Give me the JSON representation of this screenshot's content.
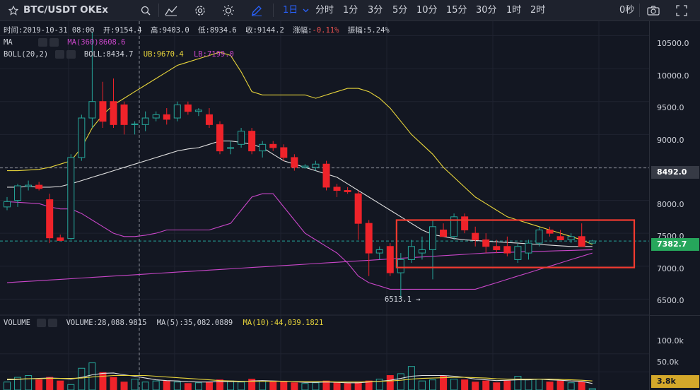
{
  "toolbar": {
    "symbol": "BTC/USDT OKEx",
    "interval": "1日",
    "intervals": [
      "分时",
      "1分",
      "3分",
      "5分",
      "10分",
      "15分",
      "30分",
      "1时",
      "2时"
    ],
    "countdown": "0秒",
    "icons": [
      "star-icon",
      "search-icon",
      "indicator-icon",
      "settings-icon",
      "theme-icon",
      "draw-icon",
      "camera-icon",
      "fullscreen-icon"
    ]
  },
  "legend": {
    "ohlc": {
      "time_label": "时间:",
      "time": "2019-10-31 08:00",
      "open_label": "开:",
      "open": "9154.4",
      "high_label": "高:",
      "high": "9403.0",
      "low_label": "低:",
      "low": "8934.6",
      "close_label": "收:",
      "close": "9144.2",
      "change_label": "涨幅:",
      "change": "-0.11%",
      "amplitude_label": "振幅:",
      "amplitude": "5.24%"
    },
    "ma": {
      "name": "MA",
      "param": "MA(360)",
      "value": "8608.6"
    },
    "boll": {
      "name": "BOLL(20,2)",
      "boll_label": "BOLL:",
      "boll": "8434.7",
      "ub_label": "UB:",
      "ub": "9670.4",
      "lb_label": "LB:",
      "lb": "7199.0"
    },
    "volume": {
      "name": "VOLUME",
      "vol_label": "VOLUME:",
      "vol": "28,088.9815",
      "ma5_label": "MA(5):",
      "ma5": "35,082.0889",
      "ma10_label": "MA(10):",
      "ma10": "44,039.1821"
    }
  },
  "price_axis": {
    "ticks": [
      "10500.0",
      "10000.0",
      "9500.0",
      "9000.0",
      "8500.0",
      "8000.0",
      "7500.0",
      "7000.0",
      "6500.0"
    ],
    "crosshair_price": "8492.0",
    "last_price": "7382.7"
  },
  "volume_axis": {
    "ticks": [
      "100.0k",
      "50.0k"
    ],
    "current": "3.8k"
  },
  "annotations": {
    "low_marker": "6513.1"
  },
  "colors": {
    "up": "#26a69a",
    "down": "#ef232a",
    "boll_mid": "#e0e0e0",
    "boll_upper": "#e8d53b",
    "boll_lower": "#c846c8",
    "ma360": "#c846c8",
    "ma5": "#e0e0e0",
    "ma10": "#e8d53b",
    "highlight_box": "#f23a2f",
    "last_price_bg": "#26a65b",
    "volume_current_bg": "#d4a82a"
  },
  "chart_data": {
    "type": "candlestick",
    "candles": [
      {
        "o": 7900,
        "h": 8050,
        "l": 7850,
        "c": 7980
      },
      {
        "o": 8000,
        "h": 8250,
        "l": 7900,
        "c": 8220
      },
      {
        "o": 8210,
        "h": 8300,
        "l": 8150,
        "c": 8230
      },
      {
        "o": 8230,
        "h": 8280,
        "l": 8150,
        "c": 8180
      },
      {
        "o": 8010,
        "h": 8100,
        "l": 7350,
        "c": 7430
      },
      {
        "o": 7430,
        "h": 7480,
        "l": 7380,
        "c": 7390
      },
      {
        "o": 7420,
        "h": 8700,
        "l": 7400,
        "c": 8650
      },
      {
        "o": 8650,
        "h": 9300,
        "l": 8600,
        "c": 9250
      },
      {
        "o": 9250,
        "h": 10550,
        "l": 9100,
        "c": 9500
      },
      {
        "o": 9500,
        "h": 9800,
        "l": 9100,
        "c": 9200
      },
      {
        "o": 9500,
        "h": 9850,
        "l": 9100,
        "c": 9150
      },
      {
        "o": 9450,
        "h": 9500,
        "l": 9000,
        "c": 9150
      },
      {
        "o": 9150,
        "h": 9200,
        "l": 9000,
        "c": 9160
      },
      {
        "o": 9150,
        "h": 9350,
        "l": 9050,
        "c": 9250
      },
      {
        "o": 9250,
        "h": 9350,
        "l": 9200,
        "c": 9300
      },
      {
        "o": 9300,
        "h": 9400,
        "l": 9150,
        "c": 9230
      },
      {
        "o": 9250,
        "h": 9500,
        "l": 9200,
        "c": 9450
      },
      {
        "o": 9450,
        "h": 9500,
        "l": 9300,
        "c": 9350
      },
      {
        "o": 9350,
        "h": 9400,
        "l": 9280,
        "c": 9370
      },
      {
        "o": 9300,
        "h": 9400,
        "l": 9100,
        "c": 9150
      },
      {
        "o": 9150,
        "h": 9200,
        "l": 8700,
        "c": 8750
      },
      {
        "o": 8800,
        "h": 8900,
        "l": 8700,
        "c": 8800
      },
      {
        "o": 8850,
        "h": 9100,
        "l": 8800,
        "c": 9050
      },
      {
        "o": 9050,
        "h": 9100,
        "l": 8700,
        "c": 8750
      },
      {
        "o": 8750,
        "h": 8900,
        "l": 8650,
        "c": 8850
      },
      {
        "o": 8850,
        "h": 8900,
        "l": 8750,
        "c": 8800
      },
      {
        "o": 8800,
        "h": 8850,
        "l": 8600,
        "c": 8650
      },
      {
        "o": 8650,
        "h": 8700,
        "l": 8450,
        "c": 8500
      },
      {
        "o": 8500,
        "h": 8550,
        "l": 8480,
        "c": 8520
      },
      {
        "o": 8500,
        "h": 8600,
        "l": 8450,
        "c": 8550
      },
      {
        "o": 8550,
        "h": 8600,
        "l": 8150,
        "c": 8200
      },
      {
        "o": 8200,
        "h": 8250,
        "l": 8050,
        "c": 8150
      },
      {
        "o": 8150,
        "h": 8200,
        "l": 8100,
        "c": 8130
      },
      {
        "o": 8100,
        "h": 8150,
        "l": 7400,
        "c": 7650
      },
      {
        "o": 7650,
        "h": 7700,
        "l": 6850,
        "c": 7200
      },
      {
        "o": 7200,
        "h": 7300,
        "l": 7100,
        "c": 7250
      },
      {
        "o": 7300,
        "h": 7350,
        "l": 6850,
        "c": 6900
      },
      {
        "o": 6900,
        "h": 7200,
        "l": 6513.1,
        "c": 7100
      },
      {
        "o": 7100,
        "h": 7400,
        "l": 7050,
        "c": 7300
      },
      {
        "o": 7200,
        "h": 7450,
        "l": 7100,
        "c": 7250
      },
      {
        "o": 7250,
        "h": 7700,
        "l": 6800,
        "c": 7600
      },
      {
        "o": 7550,
        "h": 7650,
        "l": 7450,
        "c": 7450
      },
      {
        "o": 7450,
        "h": 7800,
        "l": 7400,
        "c": 7750
      },
      {
        "o": 7750,
        "h": 7800,
        "l": 7500,
        "c": 7550
      },
      {
        "o": 7500,
        "h": 7600,
        "l": 7300,
        "c": 7400
      },
      {
        "o": 7400,
        "h": 7500,
        "l": 7200,
        "c": 7300
      },
      {
        "o": 7300,
        "h": 7400,
        "l": 7200,
        "c": 7250
      },
      {
        "o": 7300,
        "h": 7450,
        "l": 7150,
        "c": 7200
      },
      {
        "o": 7100,
        "h": 7350,
        "l": 7050,
        "c": 7300
      },
      {
        "o": 7200,
        "h": 7400,
        "l": 7100,
        "c": 7350
      },
      {
        "o": 7350,
        "h": 7600,
        "l": 7300,
        "c": 7550
      },
      {
        "o": 7550,
        "h": 7600,
        "l": 7450,
        "c": 7500
      },
      {
        "o": 7450,
        "h": 7550,
        "l": 7400,
        "c": 7400
      },
      {
        "o": 7400,
        "h": 7500,
        "l": 7350,
        "c": 7450
      },
      {
        "o": 7450,
        "h": 7650,
        "l": 7300,
        "c": 7300
      },
      {
        "o": 7350,
        "h": 7400,
        "l": 7340,
        "c": 7382.7
      }
    ],
    "boll_upper": [
      8450,
      8450,
      8460,
      8470,
      8500,
      8550,
      8600,
      8800,
      9100,
      9300,
      9450,
      9550,
      9650,
      9750,
      9850,
      9950,
      10050,
      10100,
      10150,
      10200,
      10250,
      10200,
      9950,
      9650,
      9600,
      9600,
      9600,
      9600,
      9600,
      9550,
      9600,
      9650,
      9700,
      9700,
      9650,
      9550,
      9400,
      9200,
      9000,
      8850,
      8700,
      8500,
      8350,
      8200,
      8050,
      7950,
      7850,
      7750,
      7700,
      7650,
      7600,
      7550,
      7500,
      7450,
      7400,
      7330
    ],
    "boll_middle": [
      8200,
      8200,
      8210,
      8200,
      8200,
      8210,
      8250,
      8300,
      8350,
      8400,
      8450,
      8500,
      8550,
      8600,
      8650,
      8700,
      8750,
      8780,
      8800,
      8850,
      8900,
      8900,
      8880,
      8850,
      8800,
      8700,
      8600,
      8550,
      8500,
      8450,
      8400,
      8350,
      8250,
      8150,
      8050,
      7950,
      7850,
      7750,
      7650,
      7550,
      7480,
      7450,
      7420,
      7400,
      7390,
      7380,
      7370,
      7360,
      7350,
      7340,
      7330,
      7320,
      7310,
      7300,
      7300,
      7300
    ],
    "boll_lower": [
      7980,
      7970,
      7960,
      7950,
      7900,
      7870,
      7870,
      7800,
      7700,
      7600,
      7500,
      7450,
      7450,
      7470,
      7500,
      7550,
      7550,
      7550,
      7550,
      7550,
      7600,
      7650,
      7850,
      8050,
      8100,
      8100,
      7900,
      7700,
      7500,
      7400,
      7300,
      7200,
      7050,
      6850,
      6750,
      6700,
      6650,
      6650,
      6650,
      6650,
      6650,
      6650,
      6650,
      6650,
      6650,
      6700,
      6750,
      6800,
      6850,
      6900,
      6950,
      7000,
      7050,
      7100,
      7150,
      7200
    ],
    "ma360": [
      6750,
      6760,
      6770,
      6780,
      6790,
      6800,
      6810,
      6820,
      6830,
      6840,
      6850,
      6860,
      6870,
      6880,
      6890,
      6900,
      6910,
      6920,
      6930,
      6940,
      6950,
      6960,
      6970,
      6980,
      6990,
      7000,
      7010,
      7020,
      7030,
      7040,
      7050,
      7060,
      7070,
      7080,
      7090,
      7100,
      7110,
      7120,
      7130,
      7140,
      7150,
      7160,
      7170,
      7180,
      7190,
      7200,
      7205,
      7210,
      7215,
      7220,
      7225,
      7230,
      7235,
      7240,
      7245,
      7250
    ],
    "volume": [
      22,
      35,
      40,
      28,
      35,
      25,
      15,
      60,
      75,
      48,
      35,
      22,
      30,
      22,
      25,
      25,
      22,
      18,
      20,
      22,
      28,
      25,
      22,
      30,
      25,
      22,
      22,
      20,
      18,
      20,
      25,
      20,
      18,
      22,
      25,
      30,
      40,
      45,
      65,
      25,
      28,
      38,
      30,
      28,
      22,
      25,
      20,
      25,
      38,
      28,
      30,
      22,
      25,
      20,
      22,
      3.8
    ],
    "vol_ma5": [
      28,
      29,
      31,
      32,
      33,
      32,
      30,
      35,
      42,
      46,
      47,
      42,
      38,
      33,
      28,
      26,
      25,
      23,
      22,
      22,
      23,
      23,
      23,
      25,
      26,
      25,
      24,
      23,
      21,
      21,
      22,
      21,
      20,
      20,
      22,
      24,
      27,
      32,
      38,
      40,
      40,
      40,
      38,
      35,
      30,
      28,
      26,
      27,
      28,
      28,
      30,
      28,
      27,
      25,
      24,
      18
    ],
    "vol_ma10": [
      30,
      30,
      31,
      31,
      32,
      32,
      32,
      33,
      36,
      38,
      40,
      40,
      40,
      40,
      38,
      36,
      34,
      32,
      30,
      28,
      26,
      25,
      24,
      24,
      24,
      24,
      24,
      23,
      23,
      23,
      23,
      22,
      22,
      22,
      23,
      24,
      25,
      27,
      30,
      32,
      33,
      34,
      35,
      35,
      34,
      33,
      31,
      30,
      30,
      30,
      30,
      30,
      29,
      28,
      27,
      25
    ],
    "price_range": [
      6300,
      10720
    ],
    "volume_range": [
      0,
      160
    ]
  }
}
